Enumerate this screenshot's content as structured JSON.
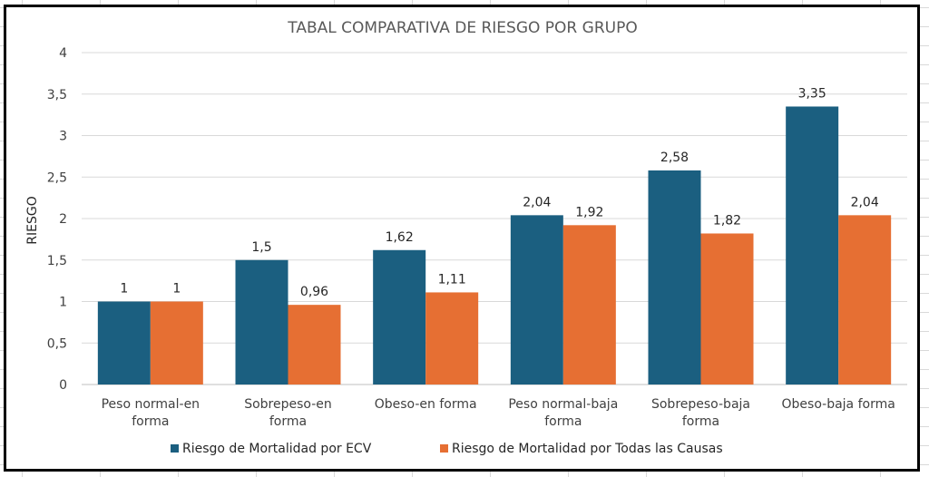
{
  "chart_data": {
    "type": "bar",
    "title": "TABAL COMPARATIVA DE RIESGO POR GRUPO",
    "ylabel": "RIESGO",
    "xlabel": "",
    "ylim": [
      0,
      4
    ],
    "yticks": [
      "0",
      "0,5",
      "1",
      "1,5",
      "2",
      "2,5",
      "3",
      "3,5",
      "4"
    ],
    "ytick_values": [
      0,
      0.5,
      1,
      1.5,
      2,
      2.5,
      3,
      3.5,
      4
    ],
    "grid": true,
    "legend_position": "bottom",
    "categories": [
      [
        "Peso normal-en",
        "forma"
      ],
      [
        "Sobrepeso-en",
        "forma"
      ],
      [
        "Obeso-en forma"
      ],
      [
        "Peso normal-baja",
        "forma"
      ],
      [
        "Sobrepeso-baja",
        "forma"
      ],
      [
        "Obeso-baja forma"
      ]
    ],
    "series": [
      {
        "name": "Riesgo de Mortalidad por ECV",
        "color": "#1b5f80",
        "values": [
          1,
          1.5,
          1.62,
          2.04,
          2.58,
          3.35
        ],
        "labels": [
          "1",
          "1,5",
          "1,62",
          "2,04",
          "2,58",
          "3,35"
        ]
      },
      {
        "name": "Riesgo de Mortalidad por Todas las Causas",
        "color": "#e66f33",
        "values": [
          1,
          0.96,
          1.11,
          1.92,
          1.82,
          2.04
        ],
        "labels": [
          "1",
          "0,96",
          "1,11",
          "1,92",
          "1,82",
          "2,04"
        ]
      }
    ]
  }
}
